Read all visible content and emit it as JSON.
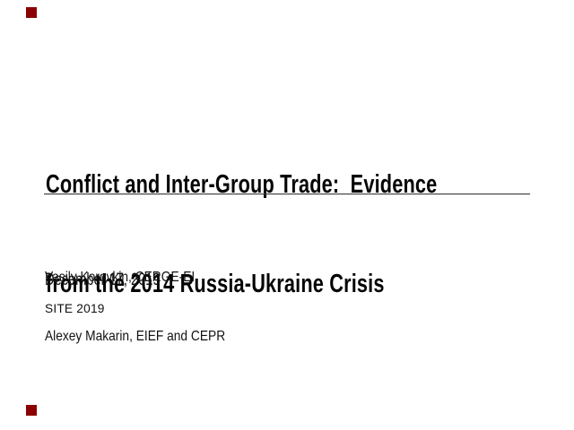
{
  "slide": {
    "title": {
      "line1": "Conflict and Inter-Group Trade:  Evidence",
      "line2": "from the 2014 Russia-Ukraine Crisis"
    },
    "authors": [
      {
        "text": "Vasily Korovkin, CERGE-EI"
      },
      {
        "text": "Alexey Makarin, EIEF and CEPR"
      }
    ],
    "date": "December 17, 2019",
    "venue": "SITE 2019"
  },
  "colors": {
    "background": "#ffffff",
    "text": "#111111",
    "title_text": "#050505",
    "rule": "#3f3f3f",
    "corner_marker": "#8b0000"
  }
}
